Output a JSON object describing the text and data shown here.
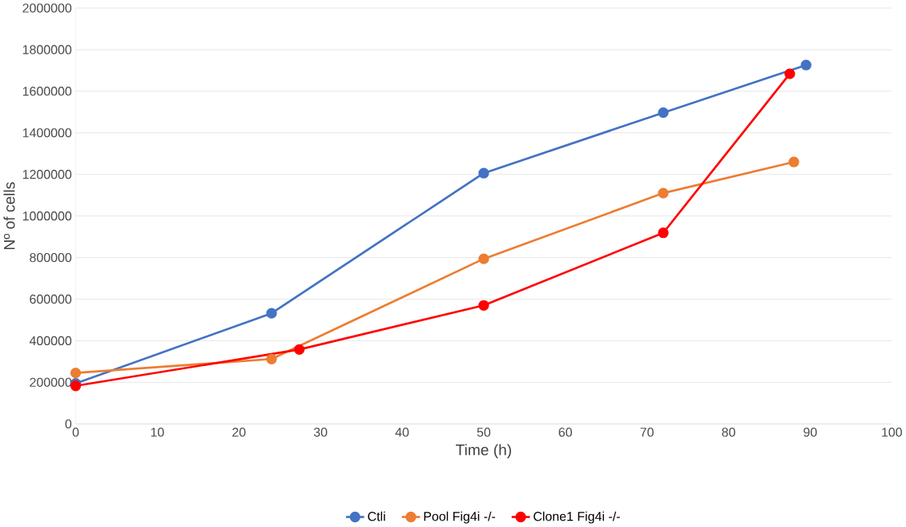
{
  "chart_data": {
    "type": "line",
    "xlabel": "Time (h)",
    "ylabel": "Nº of cells",
    "xlim": [
      0,
      100
    ],
    "xticks": [
      0,
      10,
      20,
      30,
      40,
      50,
      60,
      70,
      80,
      90,
      100
    ],
    "ylim": [
      0,
      2000000
    ],
    "yticks": [
      0,
      200000,
      400000,
      600000,
      800000,
      1000000,
      1200000,
      1400000,
      1600000,
      1800000,
      2000000
    ],
    "grid": "y",
    "legend": "bottom",
    "marker": "circle",
    "line_style": "solid",
    "series": [
      {
        "name": "Ctli",
        "color": "#4472c4",
        "x": [
          0,
          24,
          50,
          72,
          89.5
        ],
        "values": [
          195000,
          532000,
          1206000,
          1497000,
          1726000
        ]
      },
      {
        "name": "Pool Fig4i -/-",
        "color": "#ed7d31",
        "x": [
          0,
          24,
          50,
          72,
          88
        ],
        "values": [
          245000,
          312000,
          794000,
          1110000,
          1260000
        ]
      },
      {
        "name": "Clone1 Fig4i -/-",
        "color": "#ff0000",
        "x": [
          0,
          27.4,
          50,
          72,
          87.5
        ],
        "values": [
          183000,
          358000,
          570000,
          919000,
          1684000
        ]
      }
    ]
  }
}
